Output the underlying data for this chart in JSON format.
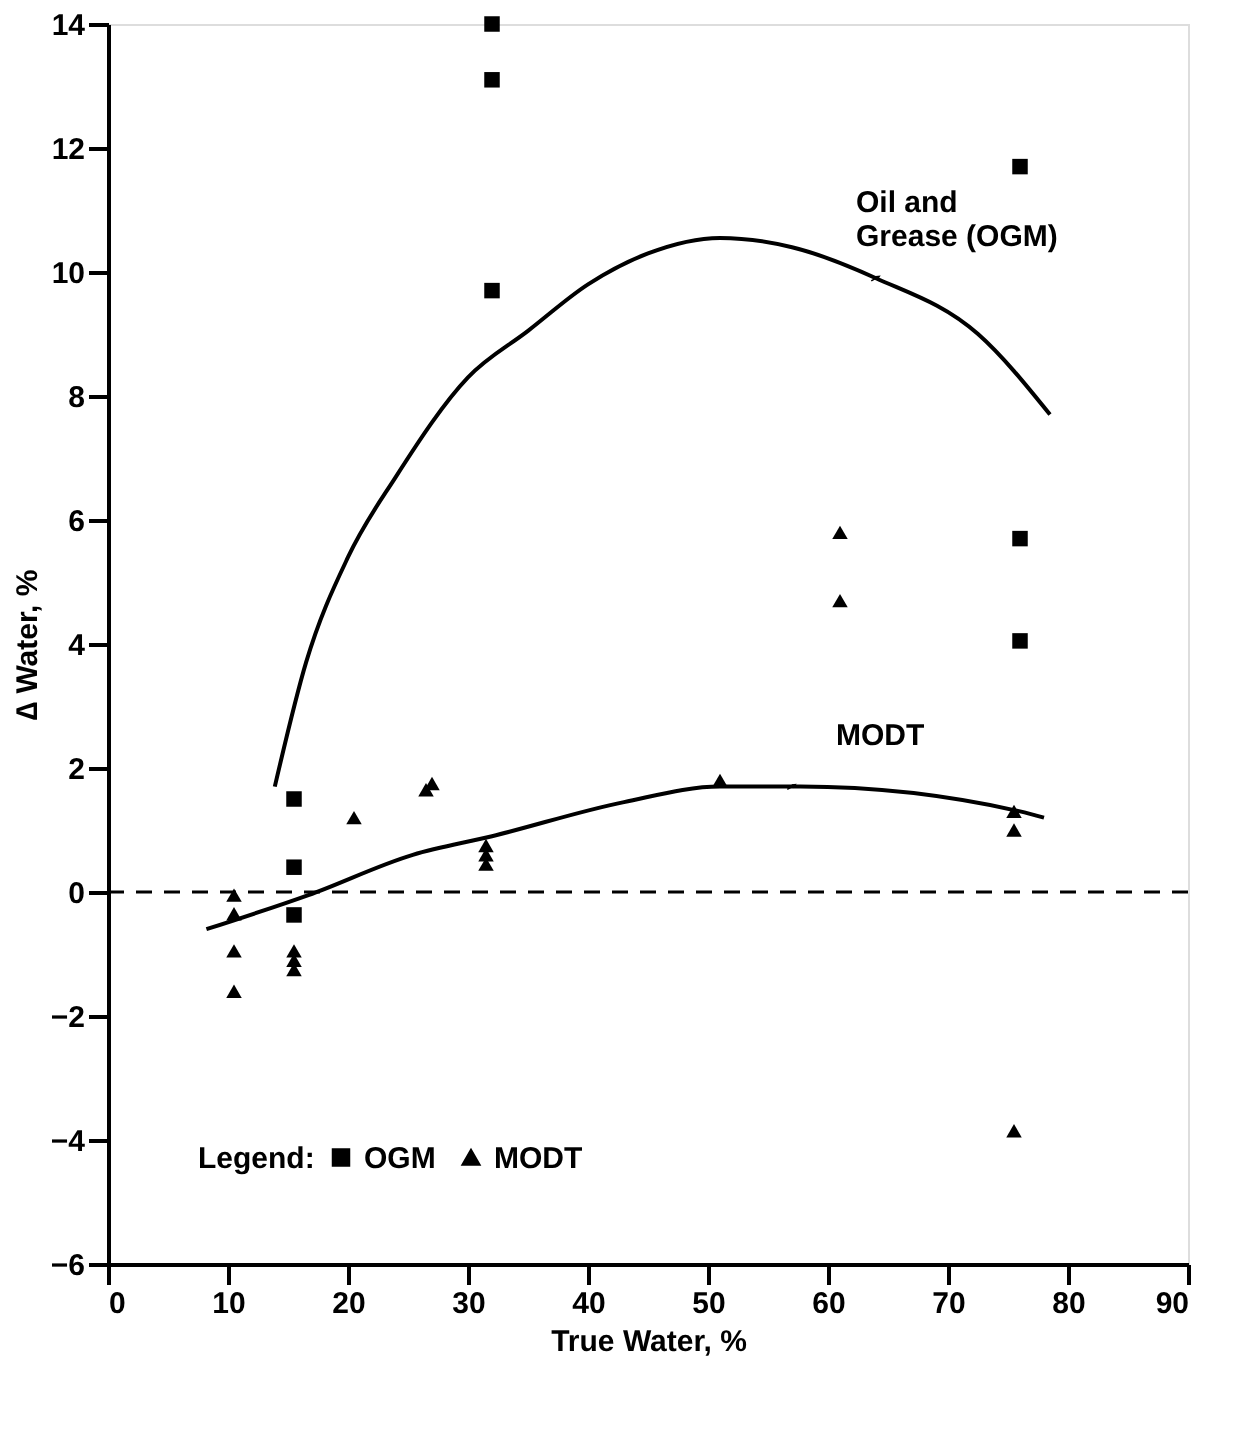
{
  "chart_data": {
    "type": "scatter",
    "xlabel": "True Water, %",
    "ylabel": "∆ Water, %",
    "legend_title": "Legend:",
    "legend": "bottom left",
    "grid": false,
    "xlim": [
      0,
      90
    ],
    "xticks": [
      0,
      10,
      20,
      30,
      40,
      50,
      60,
      70,
      80,
      90
    ],
    "ylim": [
      -6,
      14
    ],
    "yticks": [
      -6,
      -4,
      -2,
      0,
      2,
      4,
      6,
      8,
      10,
      12,
      14
    ],
    "series": [
      {
        "name": "OGM",
        "marker": "square",
        "color": "#000000",
        "x": [
          32,
          32,
          32,
          15.5,
          15.5,
          15.5,
          76,
          76,
          76
        ],
        "values": [
          14.0,
          13.1,
          9.7,
          1.5,
          0.4,
          -0.37,
          11.7,
          5.7,
          4.05
        ]
      },
      {
        "name": "MODT",
        "marker": "triangle",
        "color": "#000000",
        "x": [
          10.5,
          10.5,
          10.5,
          10.5,
          15.5,
          15.5,
          15.5,
          20.5,
          26.5,
          27,
          31.5,
          31.5,
          31.5,
          51,
          61,
          61,
          75.5,
          75.5,
          75.5
        ],
        "values": [
          -0.05,
          -0.35,
          -0.95,
          -1.6,
          -0.95,
          -1.1,
          -1.25,
          1.2,
          1.65,
          1.75,
          0.75,
          0.6,
          0.45,
          1.8,
          5.8,
          4.7,
          1.3,
          1.0,
          -3.85
        ]
      },
      {
        "type": "line",
        "marker": "none",
        "line_style": "solid",
        "color": "#000000",
        "x": [
          13.9,
          16.5,
          20,
          24,
          30,
          35,
          40,
          45,
          51,
          57,
          64,
          72.5,
          78.5
        ],
        "values": [
          1.7,
          3.7,
          5.4,
          6.7,
          8.3,
          9.05,
          9.8,
          10.3,
          10.55,
          10.4,
          9.9,
          9.0,
          7.7
        ]
      },
      {
        "type": "line",
        "marker": "none",
        "line_style": "solid",
        "color": "#000000",
        "x": [
          8.2,
          16.7,
          25.4,
          32,
          43,
          51,
          57.7,
          76,
          78
        ],
        "values": [
          -0.6,
          -0.05,
          0.6,
          0.9,
          1.45,
          1.7,
          1.7,
          1.3,
          1.2
        ]
      }
    ],
    "ref_lines": [
      {
        "axis": "y",
        "value": 0,
        "line_style": "dashed",
        "color": "#000000"
      }
    ],
    "annotations": [
      {
        "text": "Oil and Grease (OGM)",
        "x": 64,
        "y": 9.9
      },
      {
        "text": "MODT",
        "x": 57,
        "y": 1.7
      }
    ]
  }
}
